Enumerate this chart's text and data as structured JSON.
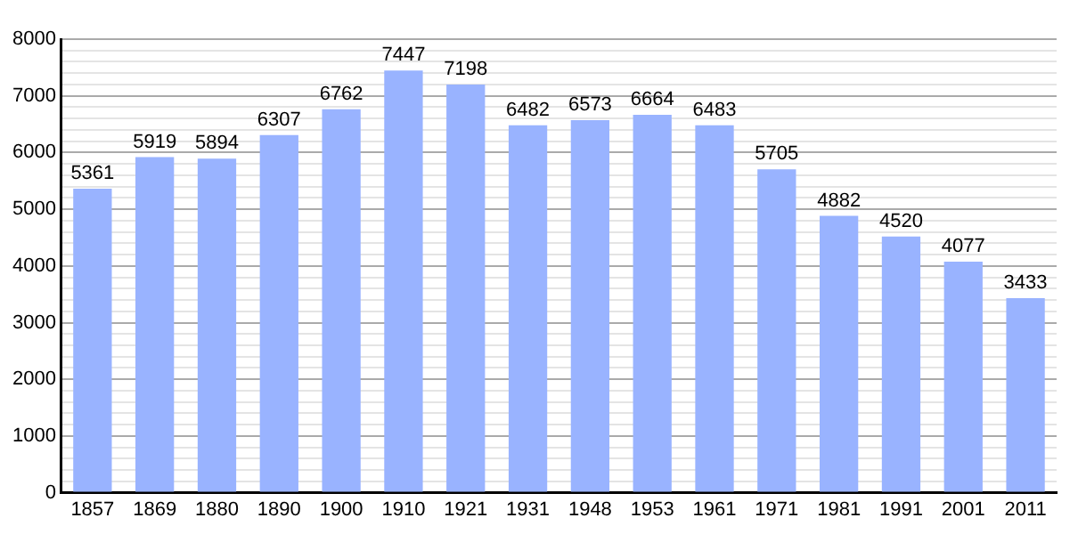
{
  "chart_data": {
    "type": "bar",
    "categories": [
      "1857",
      "1869",
      "1880",
      "1890",
      "1900",
      "1910",
      "1921",
      "1931",
      "1948",
      "1953",
      "1961",
      "1971",
      "1981",
      "1991",
      "2001",
      "2011"
    ],
    "values": [
      5361,
      5919,
      5894,
      6307,
      6762,
      7447,
      7198,
      6482,
      6573,
      6664,
      6483,
      5705,
      4882,
      4520,
      4077,
      3433
    ],
    "color": "#99b3ff",
    "ylim": [
      0,
      8000
    ],
    "yticks": [
      0,
      {
        "value": 200,
        "label": null
      },
      {
        "value": 400,
        "label": null
      },
      {
        "value": 600,
        "label": null
      },
      {
        "value": 800,
        "label": null
      },
      1000,
      {
        "value": 1200,
        "label": null
      },
      {
        "value": 1400,
        "label": null
      },
      {
        "value": 1600,
        "label": null
      },
      {
        "value": 1800,
        "label": null
      },
      2000,
      {
        "value": 2200,
        "label": null
      },
      {
        "value": 2400,
        "label": null
      },
      {
        "value": 2600,
        "label": null
      },
      {
        "value": 2800,
        "label": null
      },
      3000,
      {
        "value": 3200,
        "label": null
      },
      {
        "value": 3400,
        "label": null
      },
      {
        "value": 3600,
        "label": null
      },
      {
        "value": 3800,
        "label": null
      },
      4000,
      {
        "value": 4200,
        "label": null
      },
      {
        "value": 4400,
        "label": null
      },
      {
        "value": 4600,
        "label": null
      },
      {
        "value": 4800,
        "label": null
      },
      5000,
      {
        "value": 5200,
        "label": null
      },
      {
        "value": 5400,
        "label": null
      },
      {
        "value": 5600,
        "label": null
      },
      {
        "value": 5800,
        "label": null
      },
      6000,
      {
        "value": 6200,
        "label": null
      },
      {
        "value": 6400,
        "label": null
      },
      {
        "value": 6600,
        "label": null
      },
      {
        "value": 6800,
        "label": null
      },
      7000,
      {
        "value": 7200,
        "label": null
      },
      {
        "value": 7400,
        "label": null
      },
      {
        "value": 7600,
        "label": null
      },
      {
        "value": 7800,
        "label": null
      },
      8000
    ],
    "grid": true,
    "data_labels": true,
    "legend": false
  }
}
